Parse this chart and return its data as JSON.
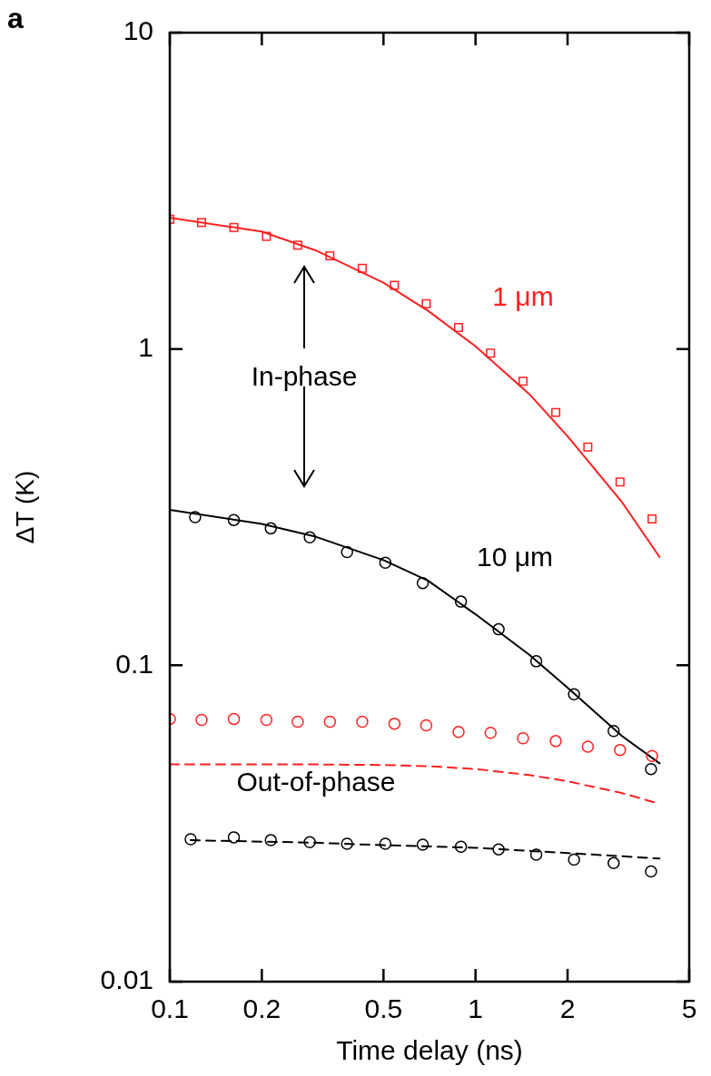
{
  "chart_data": {
    "type": "scatter",
    "xlabel": "Time delay (ns)",
    "ylabel": "ΔT (K)",
    "log": "xy",
    "xlim": [
      0.1,
      5
    ],
    "ylim": [
      0.01,
      10
    ],
    "xticks": [
      0.1,
      0.2,
      0.5,
      1,
      2,
      5
    ],
    "yticks": [
      0.01,
      0.1,
      1,
      10
    ],
    "series": [
      {
        "name": "1 μm",
        "color": "#ff2020",
        "marker": "square",
        "x": [
          0.1,
          0.127,
          0.162,
          0.207,
          0.262,
          0.334,
          0.426,
          0.543,
          0.69,
          0.88,
          1.12,
          1.43,
          1.83,
          2.33,
          2.97,
          3.78
        ],
        "values": [
          2.57,
          2.51,
          2.42,
          2.27,
          2.13,
          1.97,
          1.8,
          1.59,
          1.39,
          1.17,
          0.97,
          0.79,
          0.63,
          0.49,
          0.38,
          0.29
        ]
      },
      {
        "type": "line",
        "color": "#ff2020",
        "marker": "none",
        "line_style": "solid",
        "x": [
          0.1,
          0.2,
          0.3,
          0.5,
          0.7,
          1,
          1.5,
          2,
          3,
          4
        ],
        "values": [
          2.6,
          2.35,
          2.05,
          1.62,
          1.32,
          1.02,
          0.72,
          0.53,
          0.33,
          0.22
        ]
      },
      {
        "name": "10 μm",
        "color": "#000000",
        "marker": "circle",
        "x": [
          0.121,
          0.162,
          0.214,
          0.287,
          0.38,
          0.507,
          0.672,
          0.896,
          1.19,
          1.58,
          2.1,
          2.83,
          3.75
        ],
        "values": [
          0.294,
          0.288,
          0.271,
          0.254,
          0.228,
          0.211,
          0.182,
          0.159,
          0.13,
          0.103,
          0.081,
          0.062,
          0.047
        ]
      },
      {
        "type": "line",
        "color": "#000000",
        "marker": "none",
        "line_style": "solid",
        "x": [
          0.1,
          0.2,
          0.3,
          0.5,
          0.7,
          1,
          1.5,
          2,
          3,
          4
        ],
        "values": [
          0.31,
          0.28,
          0.255,
          0.215,
          0.185,
          0.145,
          0.108,
          0.085,
          0.06,
          0.049
        ]
      },
      {
        "color": "#ff2020",
        "marker": "circle",
        "x": [
          0.1,
          0.127,
          0.162,
          0.207,
          0.262,
          0.334,
          0.426,
          0.543,
          0.69,
          0.88,
          1.12,
          1.43,
          1.83,
          2.33,
          2.97,
          3.78
        ],
        "values": [
          0.0677,
          0.0672,
          0.0677,
          0.0672,
          0.0663,
          0.0663,
          0.0663,
          0.0654,
          0.0646,
          0.0616,
          0.0612,
          0.0588,
          0.0576,
          0.0553,
          0.054,
          0.0517
        ]
      },
      {
        "type": "line",
        "color": "#ff2020",
        "marker": "none",
        "line_style": "dashed",
        "x": [
          0.1,
          0.3,
          0.5,
          0.7,
          1,
          1.5,
          2,
          3,
          4
        ],
        "values": [
          0.0486,
          0.0486,
          0.0484,
          0.048,
          0.047,
          0.045,
          0.043,
          0.0395,
          0.0365
        ]
      },
      {
        "color": "#000000",
        "marker": "circle",
        "x": [
          0.117,
          0.162,
          0.214,
          0.287,
          0.38,
          0.507,
          0.672,
          0.896,
          1.19,
          1.58,
          2.1,
          2.83,
          3.75
        ],
        "values": [
          0.0282,
          0.0286,
          0.028,
          0.0276,
          0.0273,
          0.0273,
          0.0271,
          0.0267,
          0.0262,
          0.0252,
          0.0243,
          0.0237,
          0.0223
        ]
      },
      {
        "type": "line",
        "color": "#000000",
        "marker": "none",
        "line_style": "dashed",
        "x": [
          0.117,
          0.3,
          0.5,
          1,
          2,
          4
        ],
        "values": [
          0.028,
          0.0275,
          0.027,
          0.0265,
          0.0255,
          0.0245
        ]
      }
    ],
    "annotations": [
      "a",
      "In-phase",
      "Out-of-phase"
    ]
  }
}
